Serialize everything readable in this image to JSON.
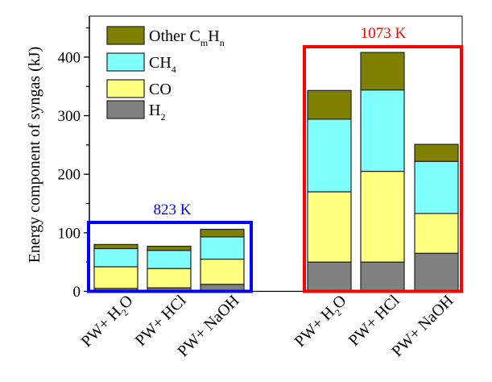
{
  "chart_data": {
    "type": "bar",
    "stacked": true,
    "title": "",
    "xlabel": "",
    "ylabel": "Energy component of syngas (kJ)",
    "ylim": [
      0,
      460
    ],
    "yticks": [
      0,
      100,
      200,
      300,
      400
    ],
    "yminor_ticks": [
      50,
      150,
      250,
      350,
      450
    ],
    "grid": false,
    "legend_position": "top-left",
    "groups": [
      {
        "label": "823 K",
        "color": "#0000FF",
        "categories": [
          0,
          1,
          2
        ]
      },
      {
        "label": "1073 K",
        "color": "#FF0000",
        "categories": [
          3,
          4,
          5
        ]
      }
    ],
    "categories": [
      {
        "base": "PW+ H",
        "sub": "2",
        "tail": "O"
      },
      {
        "base": "PW+ HCl",
        "sub": "",
        "tail": ""
      },
      {
        "base": "PW+ NaOH",
        "sub": "",
        "tail": ""
      },
      {
        "base": "PW+ H",
        "sub": "2",
        "tail": "O"
      },
      {
        "base": "PW+ HCl",
        "sub": "",
        "tail": ""
      },
      {
        "base": "PW+ NaOH",
        "sub": "",
        "tail": ""
      }
    ],
    "series": [
      {
        "name": "H2",
        "label_base": "H",
        "label_sub": "2",
        "label_tail": "",
        "sub2": "",
        "color": "#808080",
        "values": [
          5,
          6,
          12,
          50,
          50,
          65
        ]
      },
      {
        "name": "CO",
        "label_base": "CO",
        "label_sub": "",
        "label_tail": "",
        "sub2": "",
        "color": "#FFFF80",
        "values": [
          37,
          33,
          43,
          120,
          155,
          68
        ]
      },
      {
        "name": "CH4",
        "label_base": "CH",
        "label_sub": "4",
        "label_tail": "",
        "sub2": "",
        "color": "#80FFFF",
        "values": [
          31,
          31,
          38,
          124,
          139,
          89
        ]
      },
      {
        "name": "Other CmHn",
        "label_base": "Other C",
        "label_sub": "m",
        "label_tail": "H",
        "sub2": "n",
        "color": "#808000",
        "values": [
          7,
          7,
          13,
          49,
          64,
          29
        ]
      }
    ],
    "legend_order": [
      "Other CmHn",
      "CH4",
      "CO",
      "H2"
    ]
  }
}
